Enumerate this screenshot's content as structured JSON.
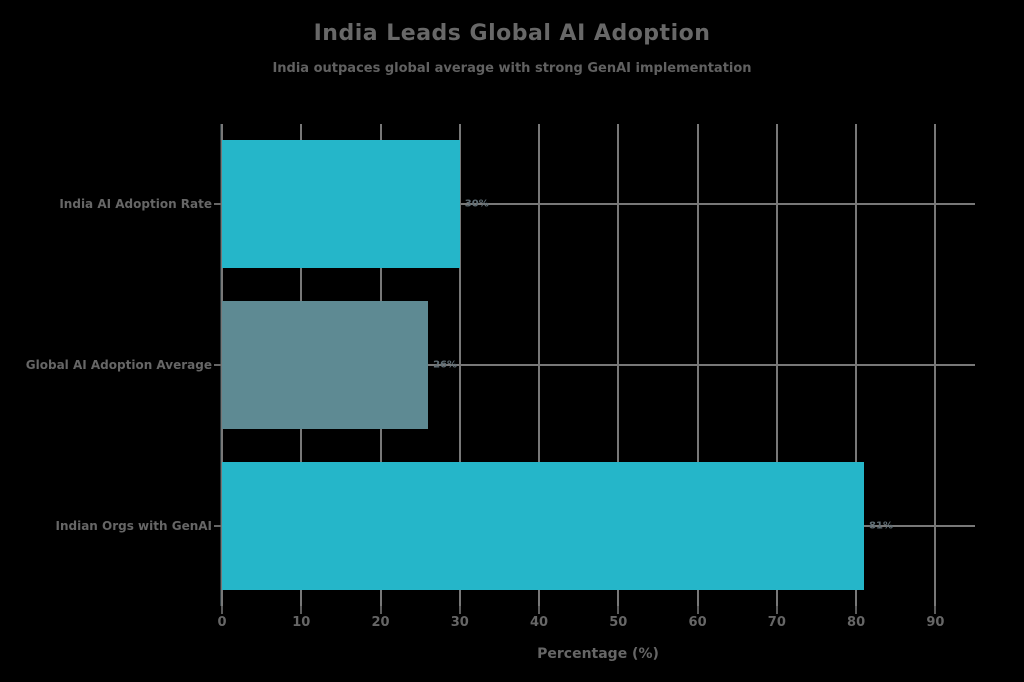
{
  "chart_data": {
    "type": "bar",
    "orientation": "horizontal",
    "title": "India Leads Global AI Adoption",
    "subtitle": "India outpaces global average with strong GenAI implementation",
    "xlabel": "Percentage (%)",
    "categories": [
      "India AI Adoption Rate",
      "Global AI Adoption Average",
      "Indian Orgs with GenAI"
    ],
    "values": [
      30,
      26,
      81
    ],
    "value_labels": [
      "30%",
      "26%",
      "81%"
    ],
    "bar_colors": [
      "#25b6c9",
      "#5e8a93",
      "#25b6c9"
    ],
    "xlim": [
      0,
      95
    ],
    "xticks": [
      0,
      10,
      20,
      30,
      40,
      50,
      60,
      70,
      80,
      90
    ],
    "grid": true,
    "legend": "none",
    "colors": {
      "background": "#000000",
      "accent_cyan": "#25b6c9",
      "muted_teal": "#5e8a93",
      "gridline": "#787878",
      "text": "#666666",
      "value_text": "#5f6d74"
    }
  }
}
